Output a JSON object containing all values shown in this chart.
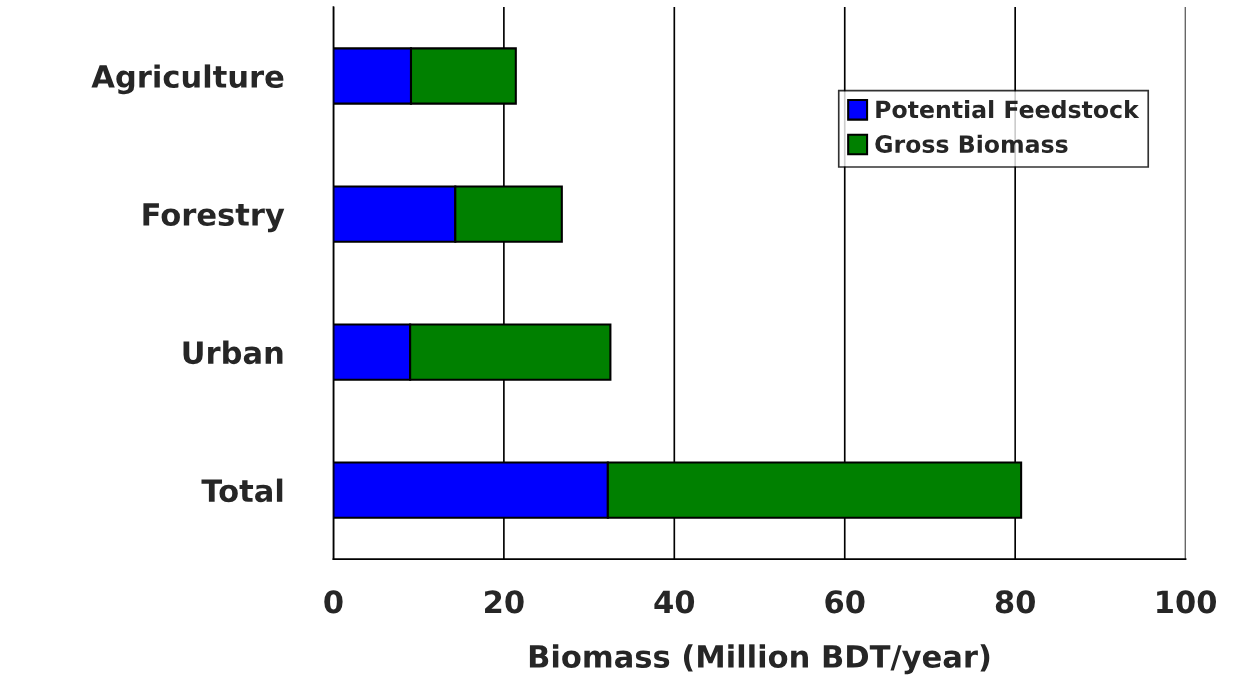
{
  "chart_data": {
    "type": "bar",
    "orientation": "horizontal",
    "stacked": true,
    "categories": [
      "Agriculture",
      "Forestry",
      "Urban",
      "Total"
    ],
    "series": [
      {
        "name": "Potential Feedstock",
        "color": "#0000ff",
        "values": [
          9.1,
          14.3,
          9.0,
          32.2
        ]
      },
      {
        "name": "Gross Biomass",
        "color": "#008000",
        "values": [
          12.3,
          12.5,
          23.5,
          48.5
        ]
      }
    ],
    "xlabel": "Biomass (Million BDT/year)",
    "xlim": [
      0,
      100
    ],
    "xticks": [
      0,
      20,
      40,
      60,
      80,
      100
    ],
    "grid": "x",
    "legend": "top right"
  }
}
